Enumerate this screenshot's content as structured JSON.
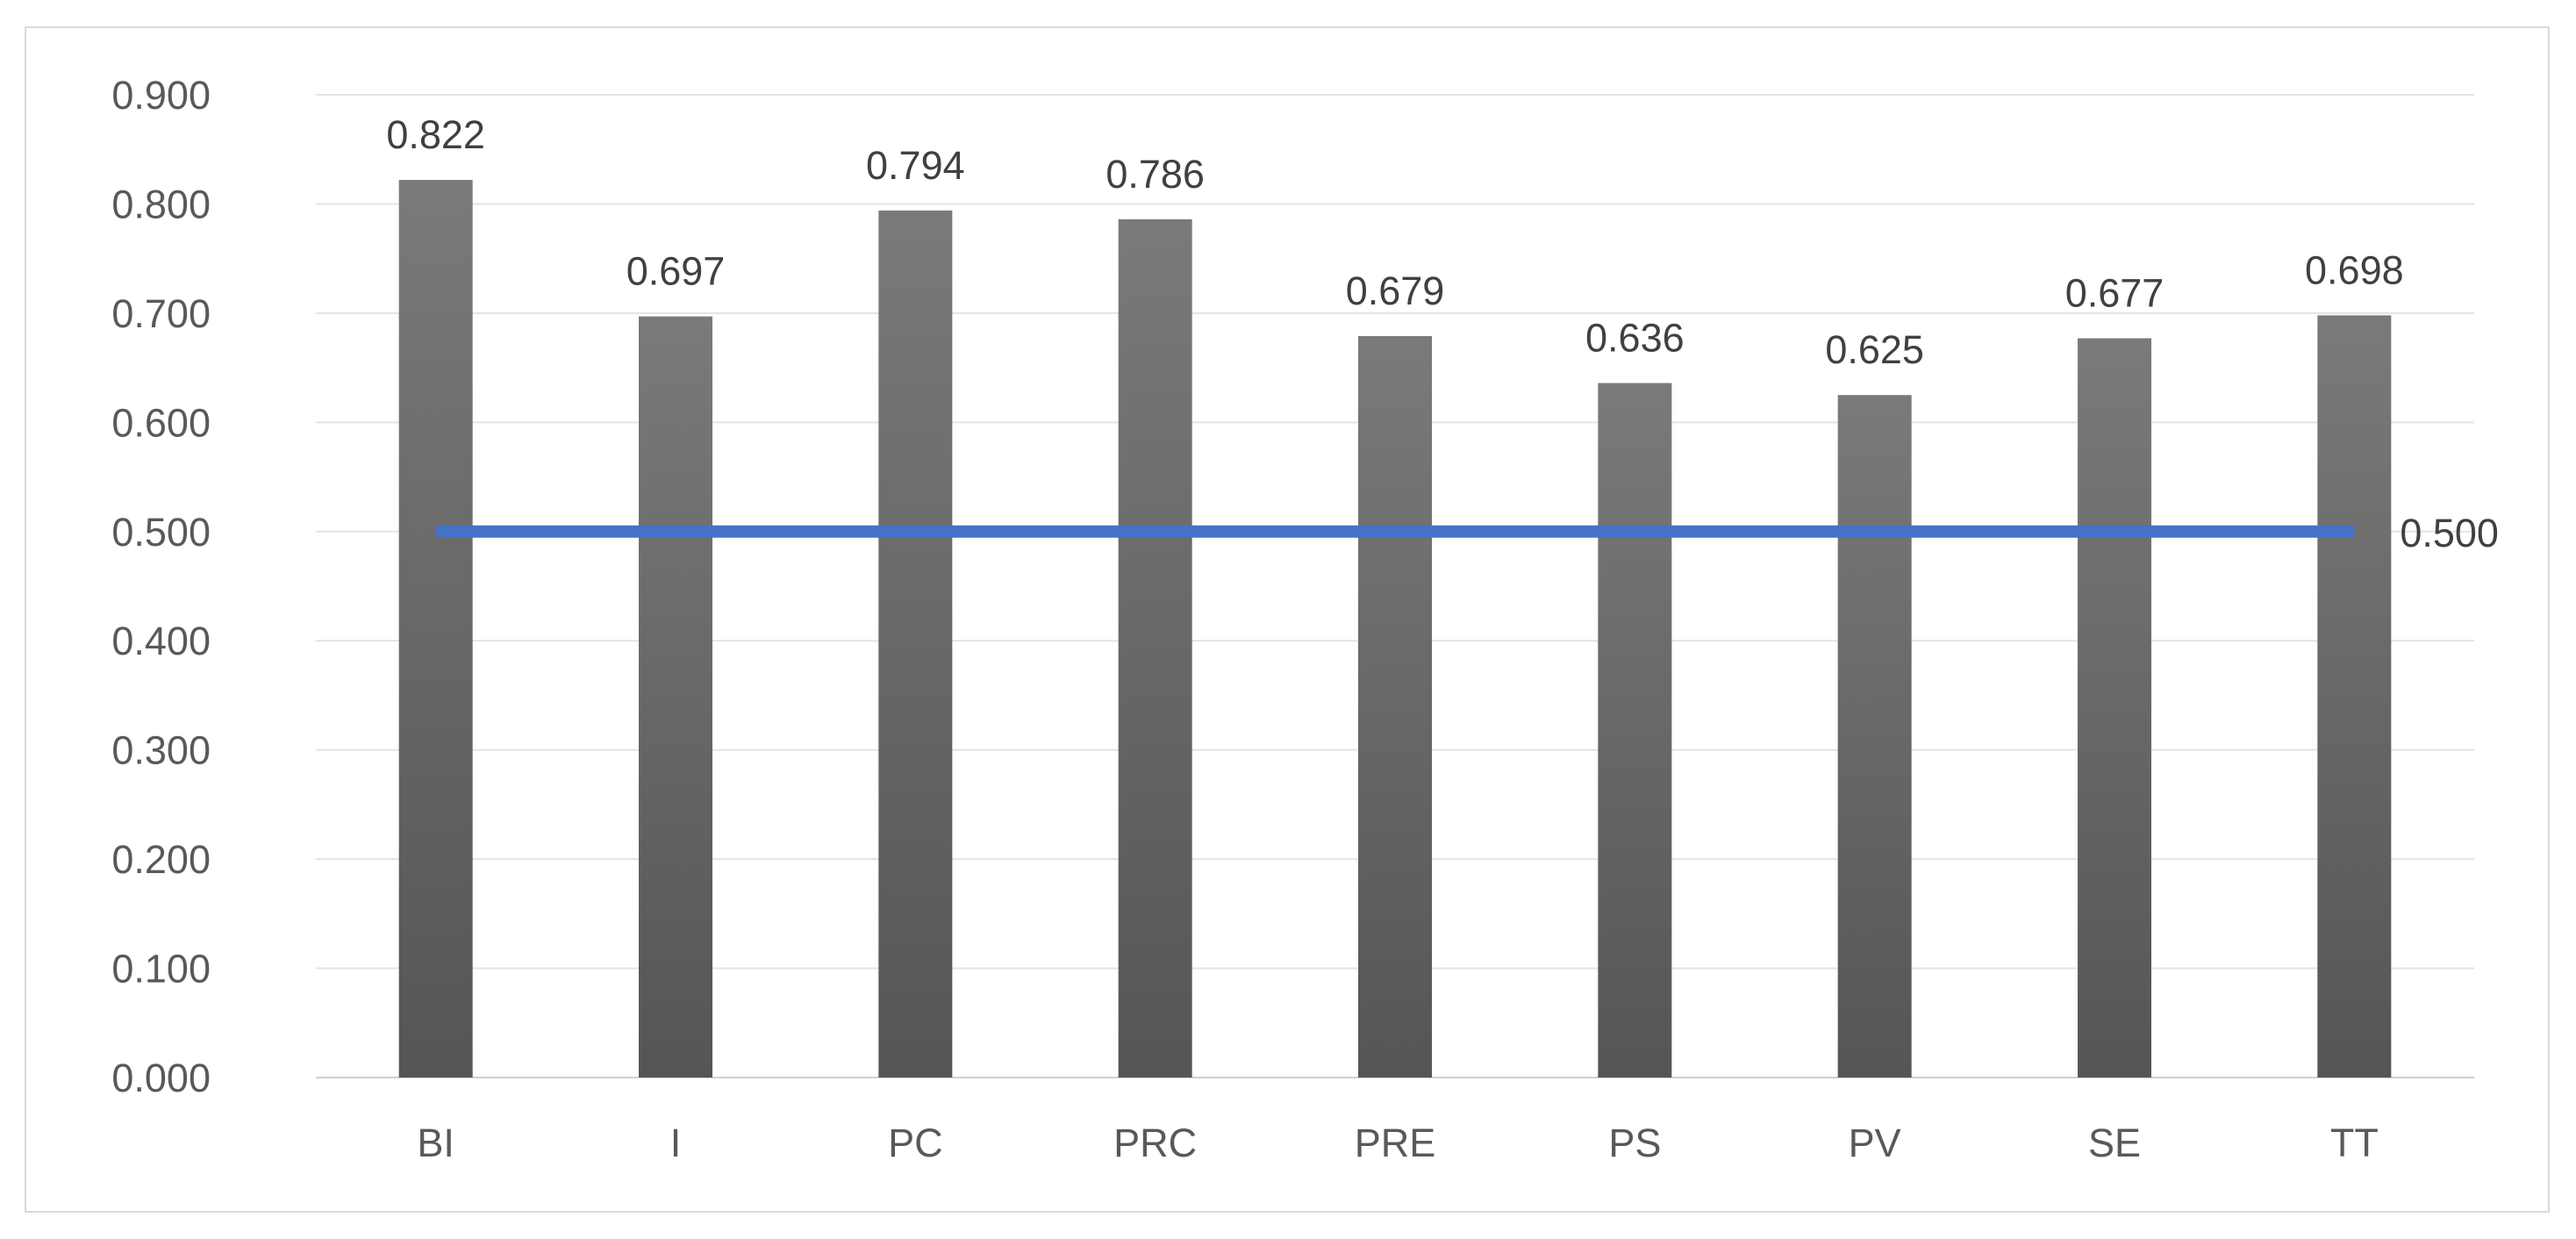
{
  "chart_data": {
    "type": "bar",
    "categories": [
      "BI",
      "I",
      "PC",
      "PRC",
      "PRE",
      "PS",
      "PV",
      "SE",
      "TT"
    ],
    "values": [
      0.822,
      0.697,
      0.794,
      0.786,
      0.679,
      0.636,
      0.625,
      0.677,
      0.698
    ],
    "value_labels": [
      "0.822",
      "0.697",
      "0.794",
      "0.786",
      "0.679",
      "0.636",
      "0.625",
      "0.677",
      "0.698"
    ],
    "reference_line": {
      "value": 0.5,
      "label": "0.500",
      "color": "#4472c4"
    },
    "ylim": [
      0,
      0.9
    ],
    "yticks": [
      0,
      0.1,
      0.2,
      0.3,
      0.4,
      0.5,
      0.6,
      0.7,
      0.8,
      0.9
    ],
    "ytick_labels": [
      "0.000",
      "0.100",
      "0.200",
      "0.300",
      "0.400",
      "0.500",
      "0.600",
      "0.700",
      "0.800",
      "0.900"
    ],
    "grid": true,
    "bar_color_top": "#7a7a7a",
    "bar_color_bottom": "#555555",
    "title": "",
    "xlabel": "",
    "ylabel": ""
  }
}
